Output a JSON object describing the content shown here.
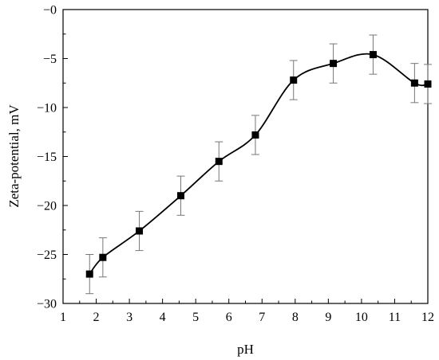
{
  "chart_data": {
    "type": "line",
    "title": "",
    "xlabel": "pH",
    "ylabel": "Zeta-potential, mV",
    "xlim": [
      1,
      12
    ],
    "ylim": [
      -30,
      0
    ],
    "x_ticks": [
      1,
      2,
      3,
      4,
      5,
      6,
      7,
      8,
      9,
      10,
      11,
      12
    ],
    "x_tick_labels": [
      "1",
      "2",
      "3",
      "4",
      "5",
      "6",
      "7",
      "8",
      "9",
      "10",
      "11",
      "12"
    ],
    "y_ticks": [
      -30,
      -25,
      -20,
      -15,
      -10,
      -5,
      0
    ],
    "y_tick_labels": [
      "−30",
      "−25",
      "−20",
      "−15",
      "−10",
      "−5",
      "−0"
    ],
    "grid": false,
    "legend": false,
    "marker": "square",
    "line_color": "#000000",
    "errorbar_color": "#777777",
    "series": [
      {
        "x": [
          1.8,
          2.2,
          3.3,
          4.55,
          5.7,
          6.8,
          7.95,
          9.15,
          10.35,
          11.6,
          12.0
        ],
        "y": [
          -27.0,
          -25.3,
          -22.6,
          -19.0,
          -15.5,
          -12.8,
          -7.2,
          -5.5,
          -4.6,
          -7.5,
          -7.6
        ],
        "error": [
          2.0,
          2.0,
          2.0,
          2.0,
          2.0,
          2.0,
          2.0,
          2.0,
          2.0,
          2.0,
          2.0
        ]
      }
    ]
  }
}
